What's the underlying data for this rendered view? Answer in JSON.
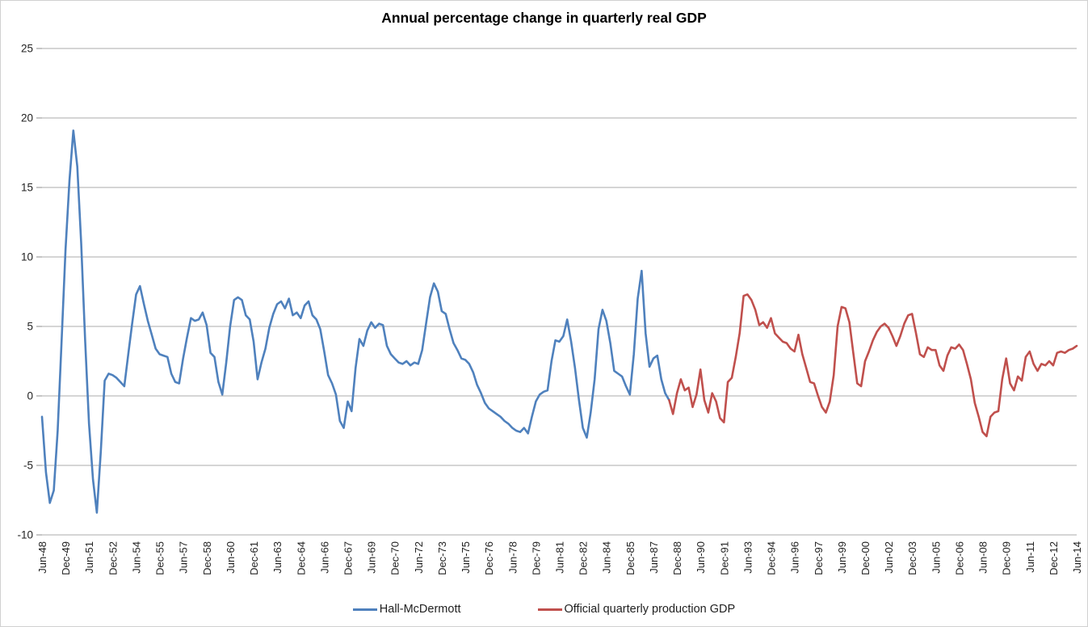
{
  "chart_data": {
    "type": "line",
    "title": "Annual percentage change in quarterly real GDP",
    "xlabel": "",
    "ylabel": "",
    "ylim": [
      -10,
      25
    ],
    "grid": "horizontal",
    "legend_position": "bottom-center",
    "y_axis": {
      "min": -10,
      "max": 25,
      "tick_interval": 5,
      "ticks": [
        -10,
        -5,
        0,
        5,
        10,
        15,
        20,
        25
      ],
      "tick_labels": [
        "-10",
        "-5",
        "0",
        "5",
        "10",
        "15",
        "20",
        "25"
      ]
    },
    "x_axis": {
      "unit": "quarters from Jun-1948 to Jun-2014",
      "quarters_total": 264,
      "label_every_n_quarters": 6,
      "tick_labels": [
        "Jun-48",
        "Dec-49",
        "Jun-51",
        "Dec-52",
        "Jun-54",
        "Dec-55",
        "Jun-57",
        "Dec-58",
        "Jun-60",
        "Dec-61",
        "Jun-63",
        "Dec-64",
        "Jun-66",
        "Dec-67",
        "Jun-69",
        "Dec-70",
        "Jun-72",
        "Dec-73",
        "Jun-75",
        "Dec-76",
        "Jun-78",
        "Dec-79",
        "Jun-81",
        "Dec-82",
        "Jun-84",
        "Dec-85",
        "Jun-87",
        "Dec-88",
        "Jun-90",
        "Dec-91",
        "Jun-93",
        "Dec-94",
        "Jun-96",
        "Dec-97",
        "Jun-99",
        "Dec-00",
        "Jun-02",
        "Dec-03",
        "Jun-05",
        "Dec-06",
        "Jun-08",
        "Dec-09",
        "Jun-11",
        "Dec-12",
        "Jun-14"
      ]
    },
    "colors": {
      "series1": "#4F81BD",
      "series2": "#C0504D",
      "gridline": "#ABABAB",
      "tick": "#8E8E8E",
      "text": "#222222"
    },
    "series": [
      {
        "name": "Hall-McDermott",
        "color": "#4F81BD",
        "start_quarter": 0,
        "first_period": "Jun-48",
        "last_period": "Jun-88",
        "values": [
          -1.5,
          -5.5,
          -7.7,
          -6.8,
          -2.5,
          4.0,
          10.5,
          15.5,
          19.1,
          16.5,
          11.0,
          4.0,
          -2.0,
          -6.0,
          -8.4,
          -4.0,
          1.1,
          1.6,
          1.5,
          1.3,
          1.0,
          0.7,
          3.0,
          5.2,
          7.3,
          7.9,
          6.6,
          5.4,
          4.4,
          3.4,
          3.0,
          2.9,
          2.8,
          1.6,
          1.0,
          0.9,
          2.7,
          4.2,
          5.6,
          5.4,
          5.5,
          6.0,
          5.1,
          3.1,
          2.8,
          1.0,
          0.1,
          2.4,
          5.0,
          6.9,
          7.1,
          6.9,
          5.8,
          5.5,
          3.9,
          1.2,
          2.4,
          3.4,
          4.9,
          5.9,
          6.6,
          6.8,
          6.3,
          7.0,
          5.8,
          6.0,
          5.6,
          6.5,
          6.8,
          5.8,
          5.5,
          4.8,
          3.2,
          1.5,
          0.9,
          0.1,
          -1.8,
          -2.3,
          -0.4,
          -1.1,
          2.0,
          4.1,
          3.6,
          4.7,
          5.3,
          4.9,
          5.2,
          5.1,
          3.6,
          3.0,
          2.7,
          2.4,
          2.3,
          2.5,
          2.2,
          2.4,
          2.3,
          3.3,
          5.2,
          7.1,
          8.1,
          7.5,
          6.1,
          5.9,
          4.8,
          3.8,
          3.3,
          2.7,
          2.6,
          2.3,
          1.7,
          0.8,
          0.2,
          -0.5,
          -0.9,
          -1.1,
          -1.3,
          -1.5,
          -1.8,
          -2.0,
          -2.3,
          -2.5,
          -2.6,
          -2.3,
          -2.7,
          -1.5,
          -0.4,
          0.1,
          0.3,
          0.4,
          2.5,
          4.0,
          3.9,
          4.3,
          5.5,
          3.9,
          2.0,
          -0.3,
          -2.3,
          -3.0,
          -1.2,
          1.2,
          4.8,
          6.2,
          5.4,
          3.8,
          1.8,
          1.6,
          1.4,
          0.7,
          0.1,
          3.0,
          7.0,
          9.0,
          4.5,
          2.1,
          2.7,
          2.9,
          1.2,
          0.2,
          -0.3
        ]
      },
      {
        "name": "Official quarterly production GDP",
        "color": "#C0504D",
        "start_quarter": 160,
        "first_period": "Jun-88",
        "last_period": "Jun-14",
        "values": [
          -0.3,
          -1.3,
          0.2,
          1.2,
          0.4,
          0.6,
          -0.8,
          0.1,
          1.9,
          -0.3,
          -1.2,
          0.2,
          -0.4,
          -1.6,
          -1.9,
          1.0,
          1.3,
          2.8,
          4.5,
          7.2,
          7.3,
          6.9,
          6.2,
          5.1,
          5.3,
          4.9,
          5.6,
          4.5,
          4.2,
          3.9,
          3.8,
          3.4,
          3.2,
          4.4,
          3.0,
          2.0,
          1.0,
          0.9,
          0.0,
          -0.8,
          -1.2,
          -0.4,
          1.5,
          5.0,
          6.4,
          6.3,
          5.3,
          3.1,
          0.9,
          0.7,
          2.5,
          3.2,
          4.0,
          4.6,
          5.0,
          5.2,
          4.9,
          4.3,
          3.6,
          4.3,
          5.2,
          5.8,
          5.9,
          4.5,
          3.0,
          2.8,
          3.5,
          3.3,
          3.3,
          2.2,
          1.8,
          2.9,
          3.5,
          3.4,
          3.7,
          3.3,
          2.3,
          1.2,
          -0.5,
          -1.5,
          -2.6,
          -2.9,
          -1.5,
          -1.2,
          -1.1,
          1.2,
          2.7,
          0.9,
          0.4,
          1.4,
          1.1,
          2.8,
          3.2,
          2.3,
          1.8,
          2.3,
          2.2,
          2.5,
          2.2,
          3.1,
          3.2,
          3.1,
          3.3,
          3.4,
          3.6
        ]
      }
    ]
  }
}
